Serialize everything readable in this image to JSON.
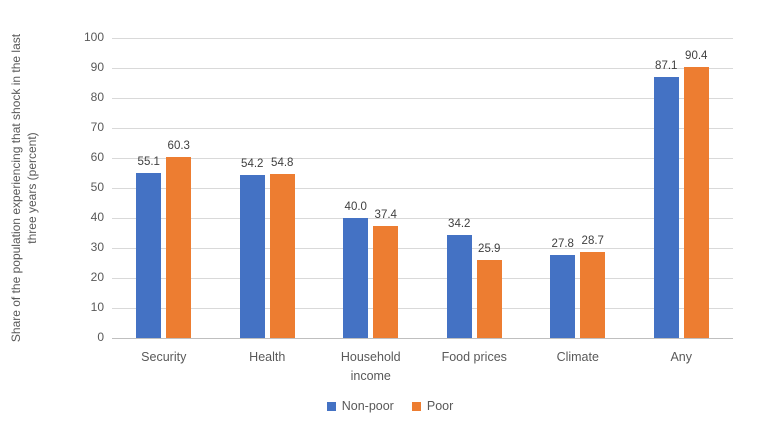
{
  "chart_data": {
    "type": "bar",
    "title": "",
    "categories": [
      "Security",
      "Health",
      "Household\nincome",
      "Food prices",
      "Climate",
      "Any"
    ],
    "series": [
      {
        "name": "Non-poor",
        "color": "#4472C4",
        "values": [
          55.1,
          54.2,
          40.0,
          34.2,
          27.8,
          87.1
        ]
      },
      {
        "name": "Poor",
        "color": "#ED7D31",
        "values": [
          60.3,
          54.8,
          37.4,
          25.9,
          28.7,
          90.4
        ]
      }
    ],
    "xlabel": "",
    "ylabel": "Share of the population experiencing that shock in the last three years (percent)",
    "ylim": [
      0,
      100
    ],
    "ytick_step": 10,
    "grid": true,
    "legend_position": "bottom",
    "data_labels": true,
    "data_label_decimals": 1
  },
  "colors": {
    "gridline": "#D9D9D9",
    "axis_line": "#BFBFBF",
    "tick_text": "#595959",
    "data_label_text": "#404040",
    "background": "#FFFFFF"
  }
}
